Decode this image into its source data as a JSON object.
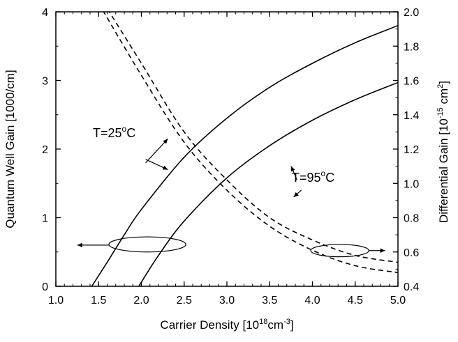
{
  "chart_data": {
    "type": "line",
    "xlabel": {
      "main": "Carrier Density [10",
      "sup1": "18",
      "mid": "cm",
      "sup2": "-3",
      "end": "]"
    },
    "ylabel_left": "Quantum Well Gain [1000/cm]",
    "ylabel_right": {
      "main": "Differential Gain [10",
      "sup1": "-15",
      "mid": " cm",
      "sup2": "2",
      "end": "]"
    },
    "xlim": [
      1.0,
      5.0
    ],
    "ylim_left": [
      0,
      4
    ],
    "ylim_right": [
      0.4,
      2.0
    ],
    "x_ticks": [
      "1.0",
      "1.5",
      "2.0",
      "2.5",
      "3.0",
      "3.5",
      "4.0",
      "4.5",
      "5.0"
    ],
    "y_left_ticks": [
      "0",
      "1",
      "2",
      "3",
      "4"
    ],
    "y_right_ticks": [
      "0.4",
      "0.6",
      "0.8",
      "1.0",
      "1.2",
      "1.4",
      "1.6",
      "1.8",
      "2.0"
    ],
    "grid": false,
    "series": [
      {
        "axis": "left",
        "style": "solid",
        "x": [
          1.42,
          1.6,
          1.8,
          2.0,
          2.5,
          3.0,
          3.5,
          4.0,
          4.5,
          5.0
        ],
        "y": [
          0.0,
          0.35,
          0.75,
          1.12,
          1.88,
          2.45,
          2.9,
          3.25,
          3.55,
          3.8
        ]
      },
      {
        "axis": "left",
        "style": "solid",
        "x": [
          1.97,
          2.2,
          2.5,
          3.0,
          3.5,
          4.0,
          4.5,
          5.0
        ],
        "y": [
          0.0,
          0.45,
          0.95,
          1.58,
          2.05,
          2.42,
          2.72,
          2.97
        ]
      },
      {
        "axis": "right",
        "style": "dashed",
        "x": [
          1.5,
          2.0,
          2.5,
          3.0,
          3.5,
          4.0,
          4.5,
          5.0
        ],
        "y": [
          2.1,
          1.7,
          1.3,
          1.02,
          0.8,
          0.67,
          0.58,
          0.54
        ]
      },
      {
        "axis": "right",
        "style": "dashed",
        "x": [
          1.5,
          2.0,
          2.5,
          3.0,
          3.5,
          4.0,
          4.5,
          5.0
        ],
        "y": [
          2.05,
          1.63,
          1.24,
          0.96,
          0.75,
          0.61,
          0.52,
          0.48
        ]
      }
    ],
    "annotations": {
      "t25": {
        "prefix": "T=25",
        "sup": "o",
        "suffix": "C"
      },
      "t95": {
        "prefix": "T=95",
        "sup": "o",
        "suffix": "C"
      }
    }
  }
}
